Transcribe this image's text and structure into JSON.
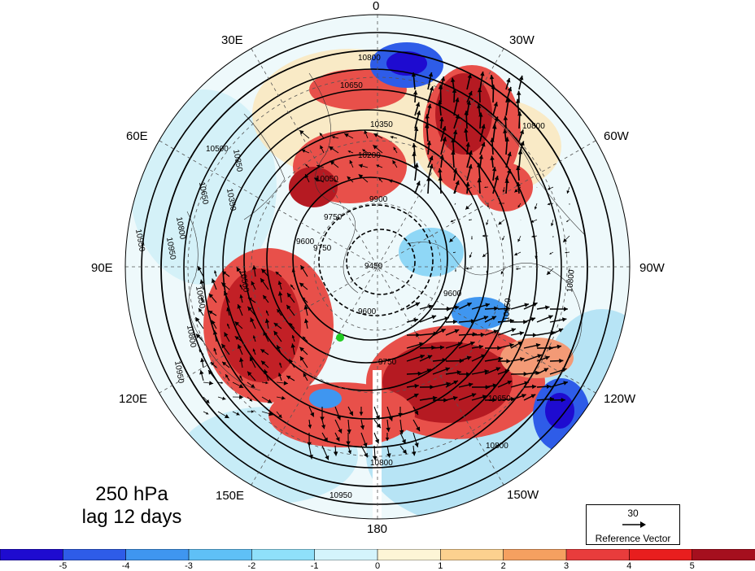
{
  "map": {
    "projection": "north-polar-stereographic",
    "lon_labels": {
      "lon_0": "0",
      "lon_30e": "30E",
      "lon_60e": "60E",
      "lon_90e": "90E",
      "lon_120e": "120E",
      "lon_150e": "150E",
      "lon_180": "180",
      "lon_150w": "150W",
      "lon_120w": "120W",
      "lon_90w": "90W",
      "lon_60w": "60W",
      "lon_30w": "30W"
    },
    "contour_labels": [
      "10800",
      "10650",
      "10350",
      "10200",
      "10050",
      "9900",
      "9750",
      "9600",
      "9450",
      "10950",
      "10500"
    ],
    "marker_color": "#22cc22"
  },
  "annotation": {
    "level": "250 hPa",
    "lag": "lag 12 days"
  },
  "reference_vector": {
    "value": "30",
    "label": "Reference Vector"
  },
  "colorbar": {
    "colors": [
      "#1e0bd0",
      "#2e5ce8",
      "#3f96f0",
      "#5fc0f6",
      "#8fe0fa",
      "#d4f4fc",
      "#fdf5d6",
      "#fcd18f",
      "#f5a060",
      "#e83c3c",
      "#e81e1e",
      "#a50f1e"
    ],
    "ticks": [
      "-5",
      "-4",
      "-3",
      "-2",
      "-1",
      "0",
      "1",
      "2",
      "3",
      "4",
      "5"
    ]
  }
}
